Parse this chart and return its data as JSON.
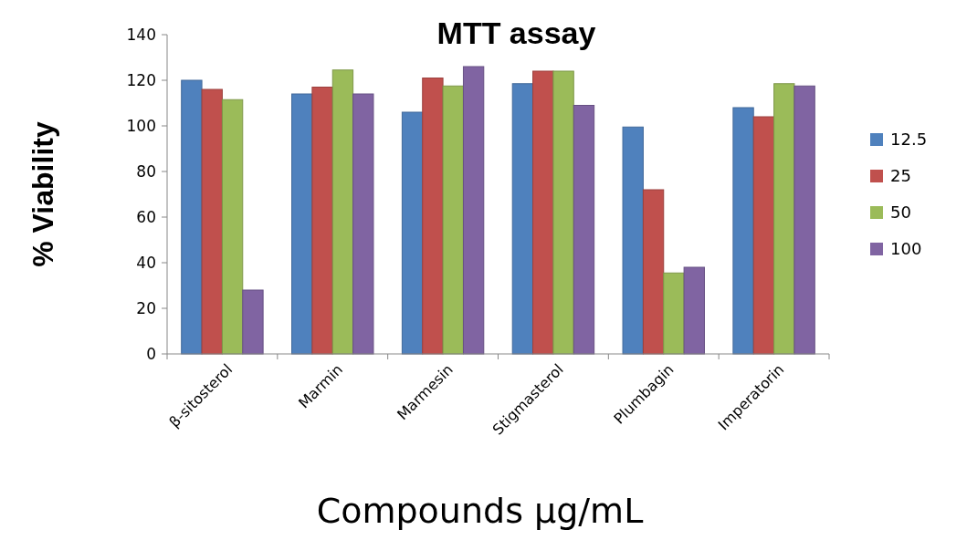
{
  "chart_data": {
    "type": "bar",
    "title": "MTT assay",
    "xlabel": "Compounds µg/mL",
    "ylabel": "% Viability",
    "categories": [
      "β-sitosterol",
      "Marmin",
      "Marmesin",
      "Stigmasterol",
      "Plumbagin",
      "Imperatorin"
    ],
    "series": [
      {
        "name": "12.5",
        "color": "#4f81bd",
        "values": [
          120,
          114,
          106,
          118.5,
          99.5,
          108
        ]
      },
      {
        "name": "25",
        "color": "#c0504d",
        "values": [
          116,
          117,
          121,
          124,
          72,
          104
        ]
      },
      {
        "name": "50",
        "color": "#9bbb59",
        "values": [
          111.5,
          124.5,
          117.5,
          124,
          35.5,
          118.5
        ]
      },
      {
        "name": "100",
        "color": "#8064a2",
        "values": [
          28,
          114,
          126,
          109,
          38,
          117.5
        ]
      }
    ],
    "ylim": [
      0,
      140
    ],
    "yticks": [
      0,
      20,
      40,
      60,
      80,
      100,
      120,
      140
    ],
    "grid": false,
    "legend": "right"
  }
}
